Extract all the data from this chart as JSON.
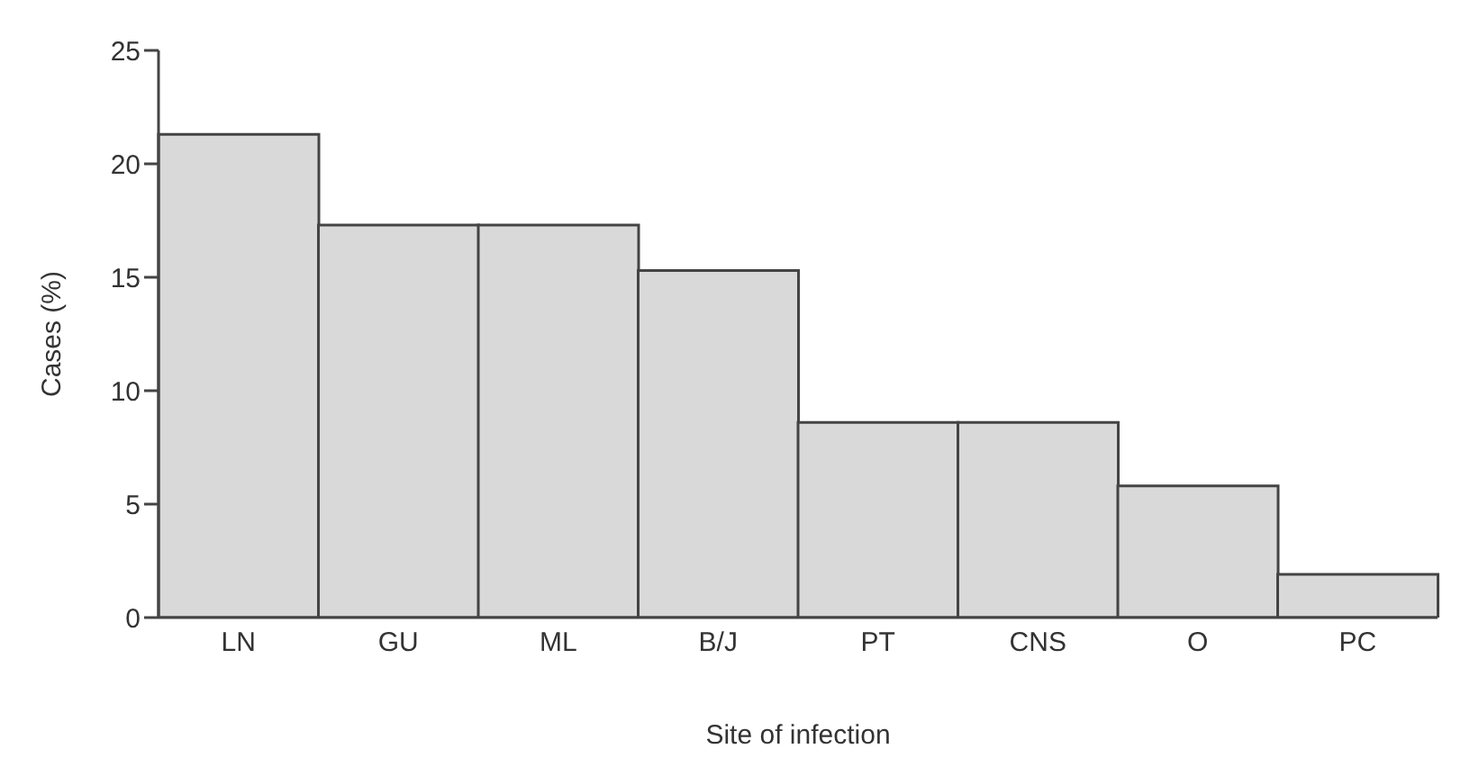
{
  "chart_data": {
    "type": "bar",
    "xlabel": "Site of infection",
    "ylabel": "Cases (%)",
    "categories": [
      "LN",
      "GU",
      "ML",
      "B/J",
      "PT",
      "CNS",
      "O",
      "PC"
    ],
    "values": [
      21.3,
      17.3,
      17.3,
      15.3,
      8.6,
      8.6,
      5.8,
      1.9
    ],
    "color": "#d9d9d9",
    "ylim": [
      0,
      25
    ],
    "yticks": [
      0,
      5,
      10,
      15,
      20,
      25
    ],
    "grid": false,
    "legend": false
  }
}
